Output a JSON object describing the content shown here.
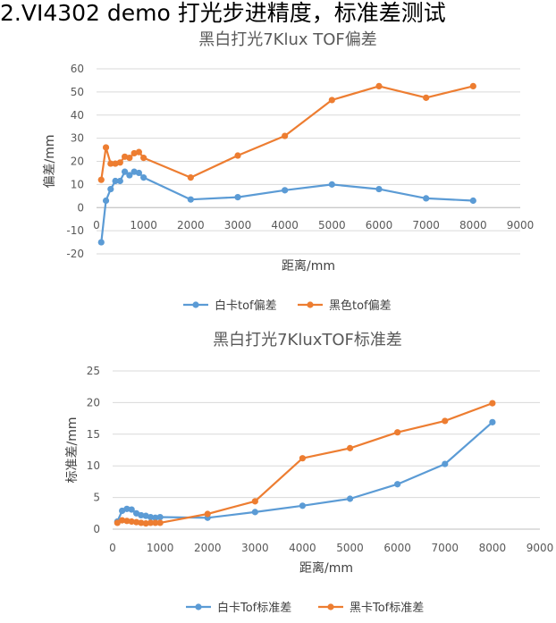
{
  "page_title": "2.VI4302 demo 打光步进精度，标准差测试",
  "colors": {
    "blue": "#5B9BD5",
    "orange": "#ED7D31",
    "grid": "#D9D9D9"
  },
  "chart_data": [
    {
      "type": "line",
      "title": "黑白打光7Klux TOF偏差",
      "xlabel": "距离/mm",
      "ylabel": "偏差/mm",
      "xlim": [
        0,
        9000
      ],
      "ylim": [
        -20,
        60
      ],
      "xticks": [
        "0",
        "1000",
        "2000",
        "3000",
        "4000",
        "5000",
        "6000",
        "7000",
        "8000",
        "9000"
      ],
      "yticks": [
        "-20",
        "-10",
        "0",
        "10",
        "20",
        "30",
        "40",
        "50",
        "60"
      ],
      "grid": true,
      "legend_position": "bottom",
      "series": [
        {
          "name": "白卡tof偏差",
          "color": "#5B9BD5",
          "x": [
            100,
            200,
            300,
            400,
            500,
            600,
            700,
            800,
            900,
            1000,
            2000,
            3000,
            4000,
            5000,
            6000,
            7000,
            8000
          ],
          "y": [
            -15,
            3,
            8,
            11.5,
            11.5,
            15.5,
            14,
            15.5,
            15,
            13,
            3.5,
            4.5,
            7.5,
            10,
            8,
            4,
            3
          ]
        },
        {
          "name": "黑色tof偏差",
          "color": "#ED7D31",
          "x": [
            100,
            200,
            300,
            400,
            500,
            600,
            700,
            800,
            900,
            1000,
            2000,
            3000,
            4000,
            5000,
            6000,
            7000,
            8000
          ],
          "y": [
            12,
            26,
            19,
            19,
            19.5,
            22,
            21.5,
            23.5,
            24,
            21.5,
            13,
            22.5,
            31,
            46.5,
            52.5,
            47.5,
            52.5
          ]
        }
      ]
    },
    {
      "type": "line",
      "title": "黑白打光7KluxTOF标准差",
      "xlabel": "距离/mm",
      "ylabel": "标准差/mm",
      "xlim": [
        0,
        9000
      ],
      "ylim": [
        0,
        25
      ],
      "xticks": [
        "0",
        "1000",
        "2000",
        "3000",
        "4000",
        "5000",
        "6000",
        "7000",
        "8000",
        "9000"
      ],
      "yticks": [
        "0",
        "5",
        "10",
        "15",
        "20",
        "25"
      ],
      "grid": true,
      "legend_position": "bottom",
      "series": [
        {
          "name": "白卡Tof标准差",
          "color": "#5B9BD5",
          "x": [
            100,
            200,
            300,
            400,
            500,
            600,
            700,
            800,
            900,
            1000,
            2000,
            3000,
            4000,
            5000,
            6000,
            7000,
            8000
          ],
          "y": [
            1.2,
            2.9,
            3.2,
            3.1,
            2.5,
            2.2,
            2.1,
            1.9,
            1.8,
            1.9,
            1.8,
            2.7,
            3.7,
            4.8,
            7.1,
            10.3,
            16.9
          ]
        },
        {
          "name": "黑卡Tof标准差",
          "color": "#ED7D31",
          "x": [
            100,
            200,
            300,
            400,
            500,
            600,
            700,
            800,
            900,
            1000,
            2000,
            3000,
            4000,
            5000,
            6000,
            7000,
            8000
          ],
          "y": [
            1.0,
            1.4,
            1.3,
            1.2,
            1.1,
            1.0,
            0.9,
            1.0,
            1.0,
            1.0,
            2.4,
            4.4,
            11.2,
            12.8,
            15.3,
            17.1,
            19.9
          ]
        }
      ]
    }
  ]
}
